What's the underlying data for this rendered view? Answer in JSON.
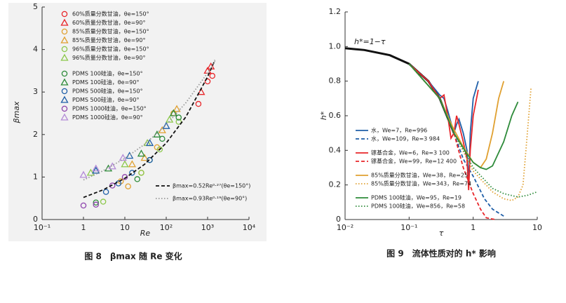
{
  "chart_data": [
    {
      "type": "scatter",
      "title": "图 8　βmax 随 Re 变化",
      "xlabel": "Re",
      "ylabel": "βmax",
      "xlog": true,
      "xlim": [
        0.1,
        10000
      ],
      "ylim": [
        0,
        5
      ],
      "xticks": [
        {
          "value": 0.1,
          "label": "10⁻¹"
        },
        1,
        10,
        {
          "value": 100,
          "label": "10²"
        },
        {
          "value": 1000,
          "label": "10³"
        },
        {
          "value": 10000,
          "label": "10⁴"
        }
      ],
      "yticks": [
        0,
        1,
        2,
        3,
        4,
        5
      ],
      "series": [
        {
          "name": "60%质量分数甘油，θe=150°",
          "marker": "circle",
          "color": "#e8262a",
          "x": [
            600,
            1000,
            1300
          ],
          "values": [
            2.72,
            3.25,
            3.38
          ]
        },
        {
          "name": "60%质量分数甘油，θe=90°",
          "marker": "triangle",
          "color": "#e8262a",
          "x": [
            700,
            1000,
            1200
          ],
          "values": [
            3.0,
            3.5,
            3.6
          ]
        },
        {
          "name": "85%质量分数甘油，θe=150°",
          "marker": "circle",
          "color": "#e0a030",
          "x": [
            8,
            12,
            25,
            60,
            150
          ],
          "values": [
            0.9,
            0.78,
            1.1,
            1.7,
            2.5
          ]
        },
        {
          "name": "85%质量分数甘油，θe=90°",
          "marker": "triangle",
          "color": "#e0a030",
          "x": [
            15,
            30,
            80,
            180
          ],
          "values": [
            1.3,
            1.45,
            2.1,
            2.6
          ]
        },
        {
          "name": "96%质量分数甘油，θe=150°",
          "marker": "circle",
          "color": "#8cc84b",
          "x": [
            3,
            25,
            70,
            200
          ],
          "values": [
            0.42,
            1.1,
            1.65,
            2.3
          ]
        },
        {
          "name": "96%质量分数甘油，θe=90°",
          "marker": "triangle",
          "color": "#8cc84b",
          "x": [
            1.5,
            10,
            35,
            120
          ],
          "values": [
            1.1,
            1.3,
            1.8,
            2.35
          ]
        },
        {
          "name": "PDMS 100硅油，θe=150°",
          "marker": "circle",
          "color": "#2e8b3a",
          "x": [
            2,
            20,
            40,
            80,
            200
          ],
          "values": [
            0.4,
            0.95,
            1.4,
            1.9,
            2.4
          ]
        },
        {
          "name": "PDMS 100硅油，θe=90°",
          "marker": "triangle",
          "color": "#2e8b3a",
          "x": [
            4,
            25,
            60,
            150
          ],
          "values": [
            1.2,
            1.55,
            2.0,
            2.5
          ]
        },
        {
          "name": "PDMS 500硅油，θe=150°",
          "marker": "circle",
          "color": "#1f5fa8",
          "x": [
            3.5,
            7,
            15,
            40
          ],
          "values": [
            0.65,
            0.85,
            1.1,
            1.4
          ]
        },
        {
          "name": "PDMS 500硅油，θe=90°",
          "marker": "triangle",
          "color": "#1f5fa8",
          "x": [
            2,
            13,
            40,
            100
          ],
          "values": [
            1.15,
            1.5,
            1.8,
            2.2
          ]
        },
        {
          "name": "PDMS 1000硅油，θe=150°",
          "marker": "circle",
          "color": "#8e44ad",
          "x": [
            1,
            2,
            5,
            10
          ],
          "values": [
            0.33,
            0.35,
            0.8,
            1.0
          ]
        },
        {
          "name": "PDMS 1000硅油，θe=90°",
          "marker": "triangle",
          "color": "#b48cd8",
          "x": [
            1,
            2,
            5,
            9
          ],
          "values": [
            1.05,
            1.2,
            1.25,
            1.45
          ]
        },
        {
          "name": "βmax=0.52Re⁰·²⁷(θe=150°)",
          "type": "line",
          "style": "dashed",
          "color": "#111111",
          "x": [
            1,
            3,
            10,
            30,
            100,
            300,
            1000,
            1500
          ],
          "values": [
            0.52,
            0.7,
            0.97,
            1.3,
            1.8,
            2.42,
            3.36,
            3.75
          ]
        },
        {
          "name": "βmax=0.93Re⁰·¹⁹(θe=90°)",
          "type": "line",
          "style": "dotted",
          "color": "#999999",
          "x": [
            1,
            3,
            10,
            30,
            100,
            300,
            1000,
            1500
          ],
          "values": [
            0.93,
            1.15,
            1.44,
            1.77,
            2.23,
            2.75,
            3.45,
            3.73
          ]
        }
      ]
    },
    {
      "type": "line",
      "title": "图 9　流体性质对的 h* 影响",
      "xlabel": "τ",
      "ylabel": "h*",
      "xlog": true,
      "xlim": [
        0.01,
        10
      ],
      "ylim": [
        0,
        1.2
      ],
      "xticks": [
        {
          "value": 0.01,
          "label": "10⁻²"
        },
        {
          "value": 0.1,
          "label": "10⁻¹"
        },
        1,
        10
      ],
      "yticks": [
        0,
        0.2,
        0.4,
        0.6,
        0.8,
        {
          "value": 1,
          "label": "1.0"
        },
        1.2
      ],
      "series": [
        {
          "name": "h*=1−τ",
          "style": "solid",
          "width": 3,
          "color": "#111111",
          "x": [
            0.01,
            0.02,
            0.05,
            0.1,
            0.2,
            0.3,
            0.5
          ],
          "values": [
            0.99,
            0.98,
            0.95,
            0.9,
            0.8,
            0.7,
            0.5
          ]
        },
        {
          "name": "水，We=7，Re=996",
          "style": "solid",
          "color": "#1f5fa8",
          "x": [
            0.1,
            0.2,
            0.3,
            0.35,
            0.4,
            0.5,
            0.55,
            0.6,
            0.7,
            0.8,
            0.85,
            0.9,
            1.0,
            1.2
          ],
          "values": [
            0.9,
            0.8,
            0.72,
            0.7,
            0.63,
            0.5,
            0.55,
            0.58,
            0.5,
            0.4,
            0.2,
            0.5,
            0.7,
            0.8
          ]
        },
        {
          "name": "水，We=109，Re=3 984",
          "style": "dashed",
          "color": "#1f5fa8",
          "x": [
            0.1,
            0.2,
            0.3,
            0.5,
            0.7,
            1,
            1.5,
            2,
            3
          ],
          "values": [
            0.9,
            0.8,
            0.7,
            0.5,
            0.35,
            0.25,
            0.12,
            0.06,
            0.02
          ]
        },
        {
          "name": "镓基合金，We=6，Re=3 100",
          "style": "solid",
          "color": "#e8262a",
          "x": [
            0.1,
            0.2,
            0.3,
            0.35,
            0.4,
            0.45,
            0.5,
            0.55,
            0.6,
            0.7,
            0.8,
            0.85,
            0.9,
            1,
            1.2
          ],
          "values": [
            0.9,
            0.8,
            0.7,
            0.72,
            0.6,
            0.47,
            0.5,
            0.6,
            0.55,
            0.45,
            0.35,
            0.17,
            0.4,
            0.6,
            0.75
          ]
        },
        {
          "name": "镓基合金，We=99，Re=12 400",
          "style": "dashed",
          "color": "#e8262a",
          "x": [
            0.1,
            0.3,
            0.5,
            0.7,
            1,
            1.3,
            1.6,
            2.2
          ],
          "values": [
            0.9,
            0.7,
            0.5,
            0.3,
            0.15,
            0.06,
            0.01,
            0
          ]
        },
        {
          "name": "85%质量分数甘油，We=38，Re=25",
          "style": "solid",
          "color": "#e0a030",
          "x": [
            0.1,
            0.3,
            0.5,
            0.7,
            1,
            1.3,
            1.6,
            2,
            2.5,
            3
          ],
          "values": [
            0.9,
            0.7,
            0.52,
            0.42,
            0.33,
            0.3,
            0.35,
            0.5,
            0.7,
            0.8
          ]
        },
        {
          "name": "85%质量分数甘油，We=343，Re=74",
          "style": "dotted",
          "color": "#e0a030",
          "x": [
            0.1,
            0.3,
            0.5,
            1,
            2,
            3,
            4,
            5,
            6,
            7,
            8
          ],
          "values": [
            0.9,
            0.7,
            0.5,
            0.28,
            0.16,
            0.12,
            0.11,
            0.13,
            0.2,
            0.5,
            0.76
          ]
        },
        {
          "name": "PDMS 100硅油，We=95，Re=19",
          "style": "solid",
          "color": "#2e8b3a",
          "x": [
            0.1,
            0.3,
            0.5,
            0.8,
            1,
            1.3,
            1.6,
            2,
            3,
            4,
            5
          ],
          "values": [
            0.9,
            0.7,
            0.5,
            0.38,
            0.33,
            0.3,
            0.29,
            0.31,
            0.45,
            0.6,
            0.68
          ]
        },
        {
          "name": "PDMS 100硅油，We=856，Re=58",
          "style": "dotted",
          "color": "#2e8b3a",
          "x": [
            0.1,
            0.3,
            0.5,
            1,
            2,
            3,
            5,
            7,
            10
          ],
          "values": [
            0.9,
            0.7,
            0.5,
            0.3,
            0.18,
            0.15,
            0.13,
            0.14,
            0.16
          ]
        }
      ]
    }
  ]
}
